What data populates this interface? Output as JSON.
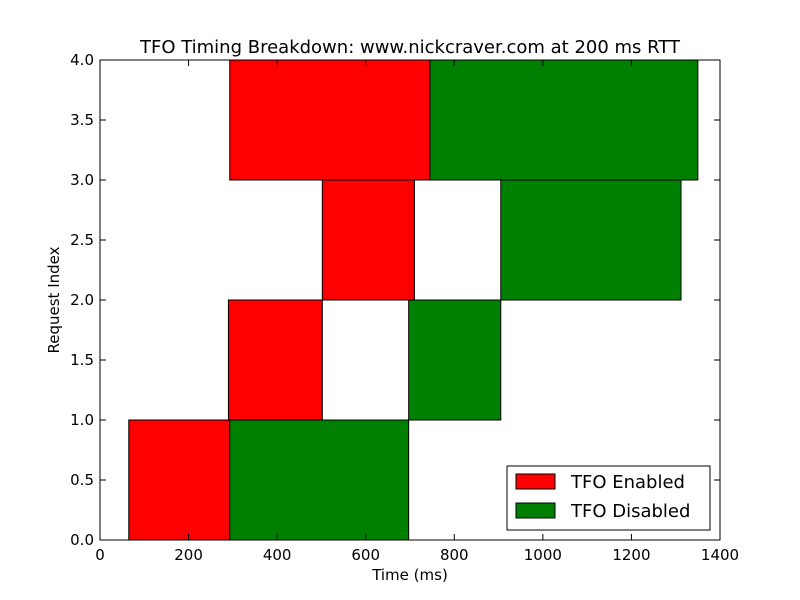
{
  "chart_data": {
    "type": "bar",
    "orientation": "horizontal-timeline",
    "title": "TFO Timing Breakdown: www.nickcraver.com at 200 ms RTT",
    "xlabel": "Time (ms)",
    "ylabel": "Request Index",
    "xlim": [
      0,
      1400
    ],
    "ylim": [
      0,
      4
    ],
    "xticks": [
      "0",
      "200",
      "400",
      "600",
      "800",
      "1000",
      "1200",
      "1400"
    ],
    "yticks": [
      "0.0",
      "0.5",
      "1.0",
      "1.5",
      "2.0",
      "2.5",
      "3.0",
      "3.5",
      "4.0"
    ],
    "grid": false,
    "legend_position": "lower-right",
    "series": [
      {
        "name": "TFO Enabled",
        "color": "#ff0000",
        "bars": [
          {
            "request": 0,
            "start": 65,
            "end": 293
          },
          {
            "request": 1,
            "start": 290,
            "end": 502
          },
          {
            "request": 2,
            "start": 502,
            "end": 710
          },
          {
            "request": 3,
            "start": 293,
            "end": 745
          }
        ]
      },
      {
        "name": "TFO Disabled",
        "color": "#008000",
        "bars": [
          {
            "request": 0,
            "start": 293,
            "end": 697
          },
          {
            "request": 1,
            "start": 697,
            "end": 905
          },
          {
            "request": 2,
            "start": 905,
            "end": 1312
          },
          {
            "request": 3,
            "start": 745,
            "end": 1350
          }
        ]
      }
    ]
  }
}
